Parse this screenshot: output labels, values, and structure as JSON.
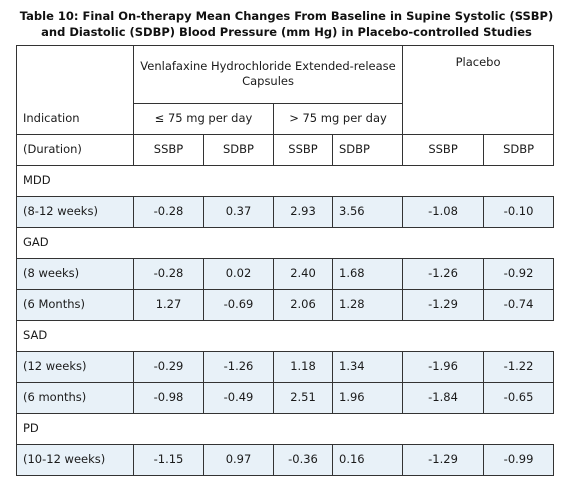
{
  "table_title": "Table 10: Final On-therapy Mean Changes From Baseline in Supine Systolic (SSBP) and Diastolic (SDBP) Blood Pressure (mm Hg) in Placebo-controlled Studies",
  "header": {
    "venlafaxine": "Venlafaxine Hydrochloride Extended-release Capsules",
    "placebo": "Placebo",
    "indication": "Indication",
    "dose_low": "≤ 75 mg per day",
    "dose_high": "> 75 mg per day",
    "duration": "(Duration)",
    "col_ssbp_low": "SSBP",
    "col_sdbp_low": "SDBP",
    "col_ssbp_high": "SSBP",
    "col_sdbp_high": "SDBP",
    "col_ssbp_placebo": "SSBP",
    "col_sdbp_placebo": "SDBP"
  },
  "rows": [
    {
      "type": "section",
      "label": "MDD"
    },
    {
      "type": "data",
      "label": "(8-12 weeks)",
      "values": [
        "-0.28",
        "0.37",
        "2.93",
        "3.56",
        "-1.08",
        "-0.10"
      ]
    },
    {
      "type": "section",
      "label": "GAD"
    },
    {
      "type": "data",
      "label": "(8 weeks)",
      "values": [
        "-0.28",
        "0.02",
        "2.40",
        "1.68",
        "-1.26",
        "-0.92"
      ]
    },
    {
      "type": "data",
      "label": "(6 Months)",
      "values": [
        "1.27",
        "-0.69",
        "2.06",
        "1.28",
        "-1.29",
        "-0.74"
      ]
    },
    {
      "type": "section",
      "label": "SAD"
    },
    {
      "type": "data",
      "label": "(12 weeks)",
      "values": [
        "-0.29",
        "-1.26",
        "1.18",
        "1.34",
        "-1.96",
        "-1.22"
      ]
    },
    {
      "type": "data",
      "label": "(6 months)",
      "values": [
        "-0.98",
        "-0.49",
        "2.51",
        "1.96",
        "-1.84",
        "-0.65"
      ]
    },
    {
      "type": "section",
      "label": "PD"
    },
    {
      "type": "data",
      "label": "(10-12 weeks)",
      "values": [
        "-1.15",
        "0.97",
        "-0.36",
        "0.16",
        "-1.29",
        "-0.99"
      ]
    }
  ]
}
